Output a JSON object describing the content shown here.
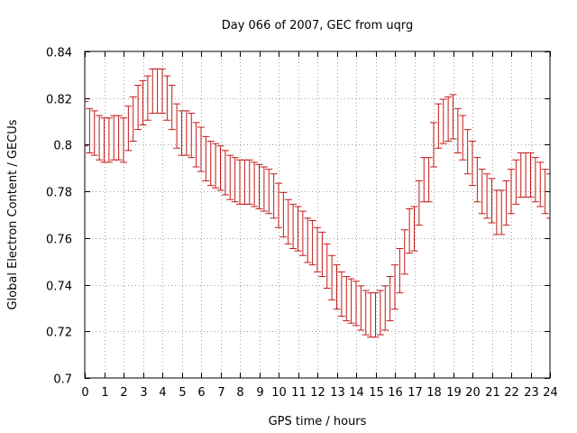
{
  "chart_data": {
    "type": "errorbar",
    "title": "Day 066 of 2007, GEC from uqrg",
    "xlabel": "GPS time / hours",
    "ylabel": "Global Electron Content / GECUs",
    "xlim": [
      0,
      24
    ],
    "ylim": [
      0.7,
      0.84
    ],
    "xticks": [
      "0",
      "1",
      "2",
      "3",
      "4",
      "5",
      "6",
      "7",
      "8",
      "9",
      "10",
      "11",
      "12",
      "13",
      "14",
      "15",
      "16",
      "17",
      "18",
      "19",
      "20",
      "21",
      "22",
      "23",
      "24"
    ],
    "yticks": [
      "0.7",
      "0.72",
      "0.74",
      "0.76",
      "0.78",
      "0.8",
      "0.82",
      "0.84"
    ],
    "grid": true,
    "series_color": "#c41a1a",
    "error_half_width": 0.0095,
    "series": [
      {
        "x": [
          0,
          0.25,
          0.5,
          0.75,
          1,
          1.25,
          1.5,
          1.75,
          2,
          2.25,
          2.5,
          2.75,
          3,
          3.25,
          3.5,
          3.75,
          4,
          4.25,
          4.5,
          4.75,
          5,
          5.25,
          5.5,
          5.75,
          6,
          6.25,
          6.5,
          6.75,
          7,
          7.25,
          7.5,
          7.75,
          8,
          8.25,
          8.5,
          8.75,
          9,
          9.25,
          9.5,
          9.75,
          10,
          10.25,
          10.5,
          10.75,
          11,
          11.25,
          11.5,
          11.75,
          12,
          12.25,
          12.5,
          12.75,
          13,
          13.25,
          13.5,
          13.75,
          14,
          14.25,
          14.5,
          14.75,
          15,
          15.25,
          15.5,
          15.75,
          16,
          16.25,
          16.5,
          16.75,
          17,
          17.25,
          17.5,
          17.75,
          18,
          18.25,
          18.5,
          18.75,
          19,
          19.25,
          19.5,
          19.75,
          20,
          20.25,
          20.5,
          20.75,
          21,
          21.25,
          21.5,
          21.75,
          22,
          22.25,
          22.5,
          22.75,
          23,
          23.25,
          23.5,
          23.75,
          24
        ],
        "y": [
          0.809,
          0.806,
          0.805,
          0.803,
          0.802,
          0.802,
          0.803,
          0.803,
          0.802,
          0.807,
          0.811,
          0.816,
          0.818,
          0.82,
          0.823,
          0.823,
          0.823,
          0.82,
          0.816,
          0.808,
          0.805,
          0.805,
          0.804,
          0.8,
          0.798,
          0.794,
          0.792,
          0.791,
          0.79,
          0.788,
          0.786,
          0.785,
          0.784,
          0.784,
          0.784,
          0.783,
          0.782,
          0.781,
          0.78,
          0.778,
          0.774,
          0.77,
          0.767,
          0.765,
          0.764,
          0.762,
          0.759,
          0.758,
          0.755,
          0.753,
          0.748,
          0.743,
          0.739,
          0.736,
          0.734,
          0.733,
          0.732,
          0.73,
          0.728,
          0.727,
          0.727,
          0.728,
          0.73,
          0.734,
          0.739,
          0.746,
          0.754,
          0.763,
          0.764,
          0.775,
          0.785,
          0.785,
          0.8,
          0.808,
          0.81,
          0.811,
          0.812,
          0.806,
          0.803,
          0.797,
          0.792,
          0.785,
          0.78,
          0.778,
          0.776,
          0.771,
          0.771,
          0.775,
          0.78,
          0.784,
          0.787,
          0.787,
          0.787,
          0.785,
          0.783,
          0.78,
          0.778
        ]
      }
    ]
  }
}
